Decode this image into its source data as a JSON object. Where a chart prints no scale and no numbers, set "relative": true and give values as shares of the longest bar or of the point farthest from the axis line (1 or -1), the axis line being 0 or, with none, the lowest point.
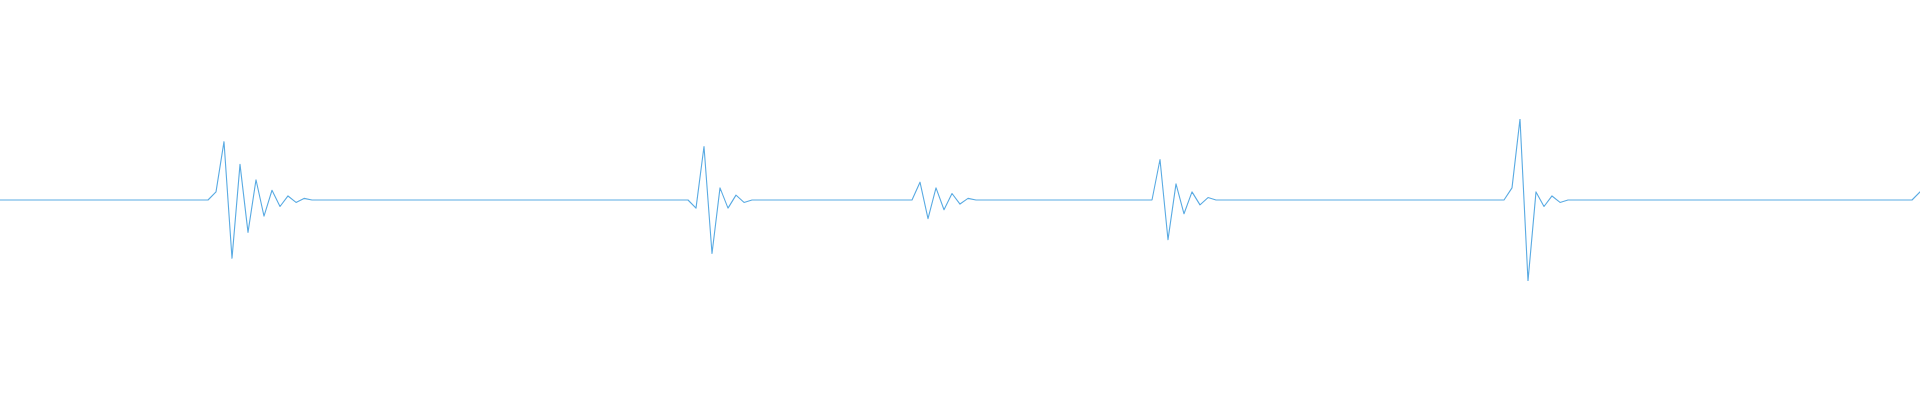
{
  "chart_data": {
    "type": "line",
    "relative": true,
    "legend": false,
    "marker": "none",
    "line_style": "solid",
    "categories": [
      null,
      null,
      null,
      null,
      null,
      null,
      null,
      null,
      null,
      null,
      null,
      null,
      null,
      null,
      null,
      null,
      null,
      null,
      null,
      null,
      null,
      null,
      null,
      null,
      null,
      null,
      null,
      null,
      null,
      null,
      null,
      null,
      null,
      null,
      null,
      null,
      null,
      null,
      null,
      null,
      null,
      null,
      null,
      null,
      null,
      null,
      null,
      null,
      null,
      null,
      null,
      null,
      null,
      null,
      null,
      null,
      null,
      null,
      null,
      null,
      null,
      null,
      null,
      null,
      null,
      null,
      null,
      null,
      null,
      null,
      null,
      null,
      null,
      null,
      null,
      null,
      null,
      null,
      null,
      null,
      null,
      null,
      null,
      null,
      null,
      null,
      null,
      null,
      null,
      null,
      null,
      null,
      null,
      null,
      null,
      null,
      null,
      null,
      null,
      null,
      null,
      null,
      null,
      null,
      null,
      null,
      null,
      null,
      null,
      null,
      null,
      null,
      null,
      null,
      null,
      null,
      null,
      null,
      null,
      null,
      null,
      null,
      null,
      null,
      null,
      null,
      null,
      null,
      null,
      null,
      null,
      null,
      null,
      null,
      null,
      null,
      null,
      null,
      null,
      null,
      null,
      null,
      null,
      null,
      null,
      null,
      null,
      null,
      null,
      null,
      null,
      null,
      null,
      null,
      null,
      null,
      null,
      null,
      null,
      null,
      null,
      null,
      null,
      null,
      null,
      null,
      null,
      null,
      null,
      null,
      null,
      null,
      null,
      null,
      null,
      null,
      null,
      null,
      null,
      null,
      null,
      null,
      null,
      null,
      null,
      null,
      null,
      null,
      null,
      null,
      null,
      null,
      null,
      null,
      null,
      null,
      null,
      null,
      null,
      null,
      null,
      null,
      null,
      null,
      null,
      null,
      null,
      null,
      null,
      null,
      null,
      null,
      null,
      null,
      null,
      null,
      null,
      null,
      null,
      null,
      null,
      null,
      null,
      null,
      null,
      null,
      null,
      null,
      null,
      null,
      null,
      null,
      null,
      null,
      null,
      null,
      null,
      null,
      null,
      null,
      null
    ],
    "series": [
      {
        "color": "#5aabe3",
        "values": [
          0.5,
          0.5,
          0.5,
          0.5,
          0.5,
          0.5,
          0.5,
          0.5,
          0.5,
          0.5,
          0.5,
          0.5,
          0.5,
          0.5,
          0.5,
          0.5,
          0.5,
          0.5,
          0.5,
          0.5,
          0.5,
          0.5,
          0.5,
          0.5,
          0.5,
          0.5,
          0.5,
          0.55,
          0.86,
          0.14,
          0.72,
          0.3,
          0.625,
          0.4,
          0.56,
          0.46,
          0.525,
          0.485,
          0.51,
          0.5,
          0.5,
          0.5,
          0.5,
          0.5,
          0.5,
          0.5,
          0.5,
          0.5,
          0.5,
          0.5,
          0.5,
          0.5,
          0.5,
          0.5,
          0.5,
          0.5,
          0.5,
          0.5,
          0.5,
          0.5,
          0.5,
          0.5,
          0.5,
          0.5,
          0.5,
          0.5,
          0.5,
          0.5,
          0.5,
          0.5,
          0.5,
          0.5,
          0.5,
          0.5,
          0.5,
          0.5,
          0.5,
          0.5,
          0.5,
          0.5,
          0.5,
          0.5,
          0.5,
          0.5,
          0.5,
          0.5,
          0.5,
          0.45,
          0.83,
          0.17,
          0.575,
          0.45,
          0.53,
          0.485,
          0.5,
          0.5,
          0.5,
          0.5,
          0.5,
          0.5,
          0.5,
          0.5,
          0.5,
          0.5,
          0.5,
          0.5,
          0.5,
          0.5,
          0.5,
          0.5,
          0.5,
          0.5,
          0.5,
          0.5,
          0.5,
          0.61,
          0.385,
          0.575,
          0.44,
          0.54,
          0.475,
          0.51,
          0.5,
          0.5,
          0.5,
          0.5,
          0.5,
          0.5,
          0.5,
          0.5,
          0.5,
          0.5,
          0.5,
          0.5,
          0.5,
          0.5,
          0.5,
          0.5,
          0.5,
          0.5,
          0.5,
          0.5,
          0.5,
          0.5,
          0.5,
          0.75,
          0.255,
          0.6,
          0.415,
          0.55,
          0.47,
          0.515,
          0.5,
          0.5,
          0.5,
          0.5,
          0.5,
          0.5,
          0.5,
          0.5,
          0.5,
          0.5,
          0.5,
          0.5,
          0.5,
          0.5,
          0.5,
          0.5,
          0.5,
          0.5,
          0.5,
          0.5,
          0.5,
          0.5,
          0.5,
          0.5,
          0.5,
          0.5,
          0.5,
          0.5,
          0.5,
          0.5,
          0.5,
          0.5,
          0.5,
          0.5,
          0.5,
          0.5,
          0.5,
          0.575,
          1,
          0,
          0.55,
          0.46,
          0.525,
          0.485,
          0.5,
          0.5,
          0.5,
          0.5,
          0.5,
          0.5,
          0.5,
          0.5,
          0.5,
          0.5,
          0.5,
          0.5,
          0.5,
          0.5,
          0.5,
          0.5,
          0.5,
          0.5,
          0.5,
          0.5,
          0.5,
          0.5,
          0.5,
          0.5,
          0.5,
          0.5,
          0.5,
          0.5,
          0.5,
          0.5,
          0.5,
          0.5,
          0.5,
          0.5,
          0.5,
          0.5,
          0.5,
          0.5,
          0.5,
          0.5,
          0.5,
          0.5,
          0.5,
          0.5,
          0.55
        ]
      }
    ]
  }
}
